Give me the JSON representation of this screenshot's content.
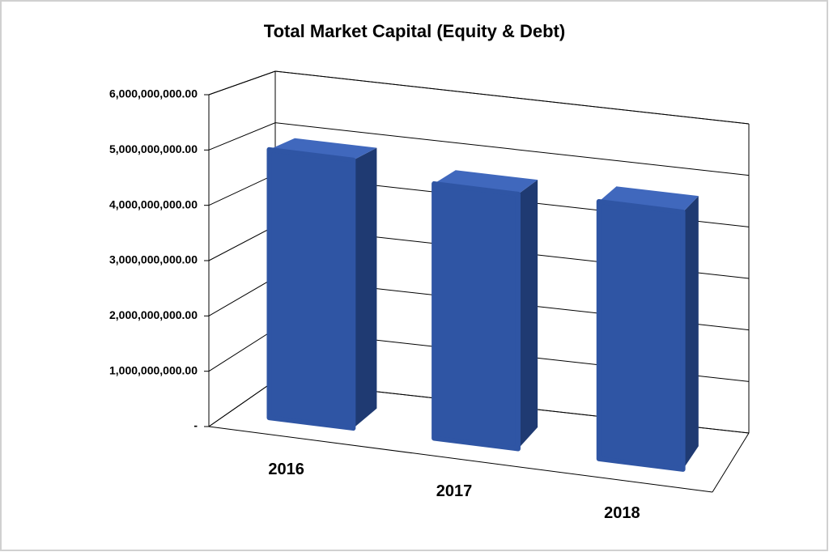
{
  "chart_data": {
    "type": "bar3d",
    "title": "Total Market Capital (Equity & Debt)",
    "categories": [
      "2016",
      "2017",
      "2018"
    ],
    "values": [
      4950000000,
      4700000000,
      4750000000
    ],
    "color": "#2f55a4",
    "ylim": [
      0,
      6000000000
    ],
    "yticks": [
      {
        "value": 0,
        "label": "-"
      },
      {
        "value": 1000000000,
        "label": "1,000,000,000.00"
      },
      {
        "value": 2000000000,
        "label": "2,000,000,000.00"
      },
      {
        "value": 3000000000,
        "label": "3,000,000,000.00"
      },
      {
        "value": 4000000000,
        "label": "4,000,000,000.00"
      },
      {
        "value": 5000000000,
        "label": "5,000,000,000.00"
      },
      {
        "value": 6000000000,
        "label": "6,000,000,000.00"
      }
    ],
    "grid": true
  }
}
